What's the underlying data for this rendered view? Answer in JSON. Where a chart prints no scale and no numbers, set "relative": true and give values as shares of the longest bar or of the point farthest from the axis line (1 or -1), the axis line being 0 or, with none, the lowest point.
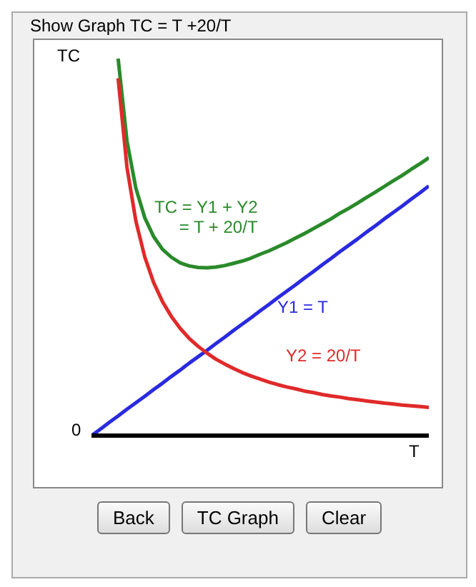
{
  "chart_data": {
    "type": "line",
    "title": "Show Graph TC = T +20/T",
    "xlabel": "T",
    "ylabel": "TC",
    "relative": true,
    "marker": "none",
    "grid": false,
    "legend": false,
    "categories": [
      null,
      null,
      null,
      null,
      null,
      null,
      null,
      null,
      null,
      null,
      null,
      null,
      null,
      null,
      null,
      null,
      null,
      null,
      null,
      null,
      null,
      null,
      null,
      null,
      null,
      null,
      null,
      null,
      null,
      null,
      null,
      null,
      null,
      null,
      null,
      null,
      null,
      null,
      null
    ],
    "series": [
      {
        "name": "TC = Y1 + Y2\n= T + 20/T",
        "color": "#2a8a2a",
        "values": [
          null,
          null,
          null,
          1.0,
          0.781,
          0.656,
          0.578,
          0.528,
          0.494,
          0.473,
          0.458,
          0.45,
          0.446,
          0.445,
          0.447,
          0.451,
          0.457,
          0.463,
          0.471,
          0.481,
          0.49,
          0.501,
          0.512,
          0.524,
          0.536,
          0.549,
          0.562,
          0.575,
          0.59,
          0.603,
          0.617,
          0.632,
          0.646,
          0.661,
          0.676,
          0.69,
          0.706,
          0.721,
          0.737
        ]
      },
      {
        "name": "Y1 = T",
        "color": "#2a2ae0",
        "values": [
          0,
          0.017,
          0.035,
          0.052,
          0.07,
          0.087,
          0.104,
          0.122,
          0.139,
          0.157,
          0.174,
          0.192,
          0.209,
          0.226,
          0.244,
          0.261,
          0.279,
          0.296,
          0.313,
          0.331,
          0.348,
          0.366,
          0.383,
          0.4,
          0.418,
          0.435,
          0.453,
          0.47,
          0.488,
          0.505,
          0.522,
          0.54,
          0.557,
          0.575,
          0.592,
          0.609,
          0.627,
          0.644,
          0.662
        ]
      },
      {
        "name": "Y2 = 20/T",
        "color": "#e02a2a",
        "values": [
          null,
          null,
          null,
          0.948,
          0.711,
          0.569,
          0.474,
          0.406,
          0.355,
          0.316,
          0.284,
          0.258,
          0.237,
          0.219,
          0.203,
          0.19,
          0.178,
          0.167,
          0.158,
          0.15,
          0.142,
          0.135,
          0.129,
          0.124,
          0.118,
          0.114,
          0.109,
          0.105,
          0.102,
          0.098,
          0.095,
          0.092,
          0.089,
          0.086,
          0.084,
          0.081,
          0.079,
          0.077,
          0.075
        ]
      }
    ],
    "annotations": [
      "0",
      "Back",
      "TC Graph",
      "Clear"
    ]
  }
}
